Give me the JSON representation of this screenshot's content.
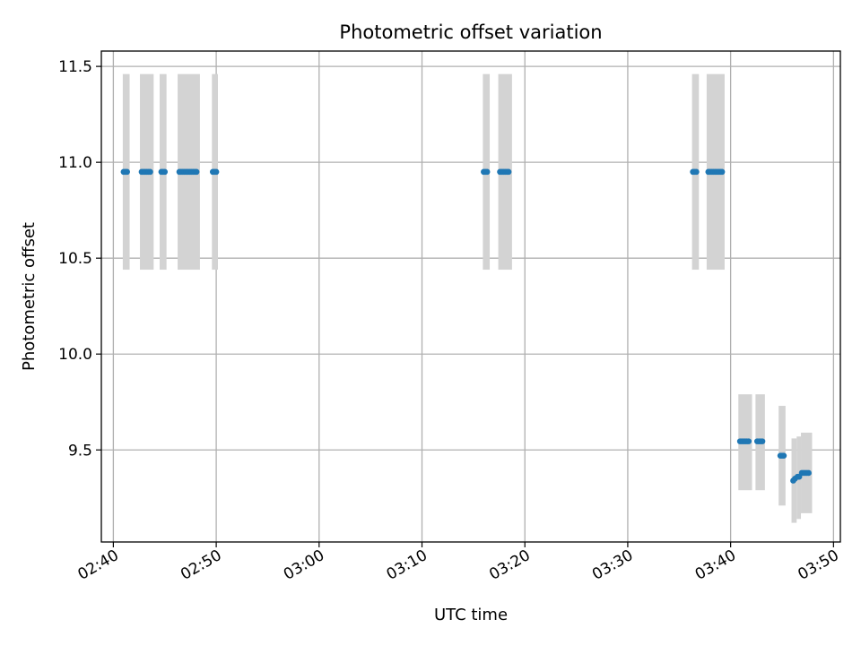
{
  "chart_data": {
    "type": "scatter",
    "title": "Photometric offset variation",
    "xlabel": "UTC time",
    "ylabel": "Photometric offset",
    "x_axis_type": "time",
    "xlim": [
      "02:38:50",
      "03:50:40"
    ],
    "ylim": [
      9.02,
      11.58
    ],
    "grid": true,
    "x_ticks": [
      "02:40",
      "02:50",
      "03:00",
      "03:10",
      "03:20",
      "03:30",
      "03:40",
      "03:50"
    ],
    "x_tick_rotation_deg": -30,
    "y_ticks": [
      9.5,
      10.0,
      10.5,
      11.0,
      11.5
    ],
    "y_tick_labels": [
      "9.5",
      "10.0",
      "10.5",
      "11.0",
      "11.5"
    ],
    "colors": {
      "points": "#1f77b4",
      "error_band": "#d3d3d3",
      "grid": "#b0b0b0"
    },
    "error_bands": [
      {
        "start": "02:40:55",
        "end": "02:41:35",
        "low": 10.44,
        "high": 11.46
      },
      {
        "start": "02:42:35",
        "end": "02:43:55",
        "low": 10.44,
        "high": 11.46
      },
      {
        "start": "02:44:30",
        "end": "02:45:10",
        "low": 10.44,
        "high": 11.46
      },
      {
        "start": "02:46:15",
        "end": "02:48:25",
        "low": 10.44,
        "high": 11.46
      },
      {
        "start": "02:49:35",
        "end": "02:50:10",
        "low": 10.44,
        "high": 11.46
      },
      {
        "start": "03:15:55",
        "end": "03:16:35",
        "low": 10.44,
        "high": 11.46
      },
      {
        "start": "03:17:25",
        "end": "03:18:45",
        "low": 10.44,
        "high": 11.46
      },
      {
        "start": "03:36:15",
        "end": "03:36:55",
        "low": 10.44,
        "high": 11.46
      },
      {
        "start": "03:37:40",
        "end": "03:39:25",
        "low": 10.44,
        "high": 11.46
      },
      {
        "start": "03:40:45",
        "end": "03:42:05",
        "low": 9.29,
        "high": 9.79
      },
      {
        "start": "03:42:25",
        "end": "03:43:20",
        "low": 9.29,
        "high": 9.79
      },
      {
        "start": "03:44:40",
        "end": "03:45:20",
        "low": 9.21,
        "high": 9.73
      },
      {
        "start": "03:45:55",
        "end": "03:46:25",
        "low": 9.12,
        "high": 9.56
      },
      {
        "start": "03:46:25",
        "end": "03:46:50",
        "low": 9.14,
        "high": 9.57
      },
      {
        "start": "03:46:50",
        "end": "03:47:55",
        "low": 9.17,
        "high": 9.59
      }
    ],
    "points": [
      {
        "time": "02:41:00",
        "y": 10.95
      },
      {
        "time": "02:41:10",
        "y": 10.95
      },
      {
        "time": "02:41:20",
        "y": 10.95
      },
      {
        "time": "02:42:45",
        "y": 10.95
      },
      {
        "time": "02:42:55",
        "y": 10.95
      },
      {
        "time": "02:43:05",
        "y": 10.95
      },
      {
        "time": "02:43:15",
        "y": 10.95
      },
      {
        "time": "02:43:25",
        "y": 10.95
      },
      {
        "time": "02:43:35",
        "y": 10.95
      },
      {
        "time": "02:44:40",
        "y": 10.95
      },
      {
        "time": "02:44:50",
        "y": 10.95
      },
      {
        "time": "02:45:00",
        "y": 10.95
      },
      {
        "time": "02:46:25",
        "y": 10.95
      },
      {
        "time": "02:46:35",
        "y": 10.95
      },
      {
        "time": "02:46:45",
        "y": 10.95
      },
      {
        "time": "02:46:55",
        "y": 10.95
      },
      {
        "time": "02:47:05",
        "y": 10.95
      },
      {
        "time": "02:47:15",
        "y": 10.95
      },
      {
        "time": "02:47:25",
        "y": 10.95
      },
      {
        "time": "02:47:35",
        "y": 10.95
      },
      {
        "time": "02:47:45",
        "y": 10.95
      },
      {
        "time": "02:47:55",
        "y": 10.95
      },
      {
        "time": "02:48:05",
        "y": 10.95
      },
      {
        "time": "02:49:40",
        "y": 10.95
      },
      {
        "time": "02:49:50",
        "y": 10.95
      },
      {
        "time": "02:50:00",
        "y": 10.95
      },
      {
        "time": "03:16:00",
        "y": 10.95
      },
      {
        "time": "03:16:10",
        "y": 10.95
      },
      {
        "time": "03:16:20",
        "y": 10.95
      },
      {
        "time": "03:17:35",
        "y": 10.95
      },
      {
        "time": "03:17:45",
        "y": 10.95
      },
      {
        "time": "03:17:55",
        "y": 10.95
      },
      {
        "time": "03:18:05",
        "y": 10.95
      },
      {
        "time": "03:18:15",
        "y": 10.95
      },
      {
        "time": "03:18:25",
        "y": 10.95
      },
      {
        "time": "03:36:20",
        "y": 10.95
      },
      {
        "time": "03:36:30",
        "y": 10.95
      },
      {
        "time": "03:36:40",
        "y": 10.95
      },
      {
        "time": "03:37:50",
        "y": 10.95
      },
      {
        "time": "03:38:00",
        "y": 10.95
      },
      {
        "time": "03:38:10",
        "y": 10.95
      },
      {
        "time": "03:38:20",
        "y": 10.95
      },
      {
        "time": "03:38:30",
        "y": 10.95
      },
      {
        "time": "03:38:40",
        "y": 10.95
      },
      {
        "time": "03:38:50",
        "y": 10.95
      },
      {
        "time": "03:39:00",
        "y": 10.95
      },
      {
        "time": "03:39:10",
        "y": 10.95
      },
      {
        "time": "03:40:55",
        "y": 9.545
      },
      {
        "time": "03:41:05",
        "y": 9.545
      },
      {
        "time": "03:41:15",
        "y": 9.545
      },
      {
        "time": "03:41:25",
        "y": 9.545
      },
      {
        "time": "03:41:35",
        "y": 9.545
      },
      {
        "time": "03:41:45",
        "y": 9.545
      },
      {
        "time": "03:42:35",
        "y": 9.545
      },
      {
        "time": "03:42:45",
        "y": 9.545
      },
      {
        "time": "03:42:55",
        "y": 9.545
      },
      {
        "time": "03:43:05",
        "y": 9.545
      },
      {
        "time": "03:44:50",
        "y": 9.47
      },
      {
        "time": "03:45:00",
        "y": 9.47
      },
      {
        "time": "03:45:10",
        "y": 9.47
      },
      {
        "time": "03:46:05",
        "y": 9.34
      },
      {
        "time": "03:46:15",
        "y": 9.35
      },
      {
        "time": "03:46:30",
        "y": 9.36
      },
      {
        "time": "03:46:40",
        "y": 9.36
      },
      {
        "time": "03:46:55",
        "y": 9.38
      },
      {
        "time": "03:47:05",
        "y": 9.38
      },
      {
        "time": "03:47:15",
        "y": 9.38
      },
      {
        "time": "03:47:25",
        "y": 9.38
      },
      {
        "time": "03:47:35",
        "y": 9.38
      }
    ]
  }
}
